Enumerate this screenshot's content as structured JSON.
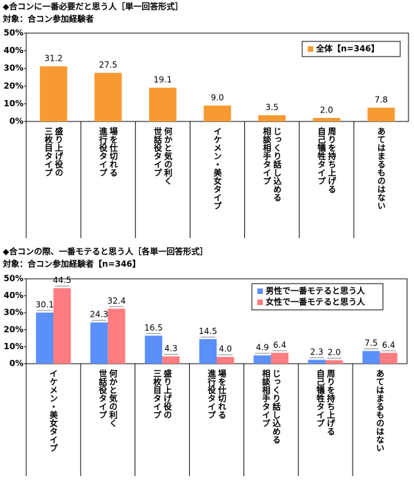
{
  "chart_data": [
    {
      "type": "bar",
      "title": "◆合コンに一番必要だと思う人［単一回答形式］",
      "subtitle": "対象：合コン参加経験者",
      "categories": [
        [
          "盛り上げ役の",
          "三枚目タイプ"
        ],
        [
          "場を仕切れる",
          "進行役タイプ"
        ],
        [
          "何かと気の利く",
          "世話役タイプ"
        ],
        [
          "イケメン・美女タイプ"
        ],
        [
          "じっくり話し込める",
          "相談相手タイプ"
        ],
        [
          "周りを持ち上げる",
          "自己犠牲タイプ"
        ],
        [
          "あてはまるものはない"
        ]
      ],
      "series": [
        {
          "name": "全体【n=346】",
          "color": "#f79a32",
          "values": [
            31.2,
            27.5,
            19.1,
            9,
            3.5,
            2,
            7.8
          ],
          "value_labels": [
            "31.2",
            "27.5",
            "19.1",
            "9.0",
            "3.5",
            "2.0",
            "7.8"
          ]
        }
      ],
      "ylim": [
        0,
        50
      ],
      "yticks": [
        {
          "value": 0,
          "label": "0%"
        },
        {
          "value": 10,
          "label": "10%"
        },
        {
          "value": 20,
          "label": "20%"
        },
        {
          "value": 30,
          "label": "30%"
        },
        {
          "value": 40,
          "label": "40%"
        },
        {
          "value": 50,
          "label": "50%"
        }
      ],
      "legend": "upper right"
    },
    {
      "type": "bar",
      "title": "◆合コンの際、一番モテると思う人［各単一回答形式］",
      "subtitle": "対象：合コン参加経験者【n=346】",
      "categories": [
        [
          "イケメン・美女タイプ"
        ],
        [
          "何かと気の利く",
          "世話役タイプ"
        ],
        [
          "盛り上げ役の",
          "三枚目タイプ"
        ],
        [
          "場を仕切れる",
          "進行役タイプ"
        ],
        [
          "じっくり話し込める",
          "相談相手タイプ"
        ],
        [
          "周りを持ち上げる",
          "自己犠牲タイプ"
        ],
        [
          "あてはまるものはない"
        ]
      ],
      "series": [
        {
          "name": "男性で一番モテると思う人",
          "color": "#5b8ff9",
          "values": [
            30.1,
            24.3,
            16.5,
            14.5,
            4.9,
            2.3,
            7.5
          ]
        },
        {
          "name": "女性で一番モテると思う人",
          "color": "#ff7c80",
          "values": [
            44.5,
            32.4,
            4.3,
            4,
            6.4,
            2,
            6.4
          ],
          "value_labels": [
            "44.5",
            "32.4",
            "4.3",
            "4.0",
            "6.4",
            "2.0",
            "6.4"
          ]
        }
      ],
      "ylim": [
        0,
        50
      ],
      "yticks": [
        {
          "value": 0,
          "label": "0%"
        },
        {
          "value": 10,
          "label": "10%"
        },
        {
          "value": 20,
          "label": "20%"
        },
        {
          "value": 30,
          "label": "30%"
        },
        {
          "value": 40,
          "label": "40%"
        },
        {
          "value": 50,
          "label": "50%"
        }
      ],
      "legend": "upper right"
    }
  ]
}
